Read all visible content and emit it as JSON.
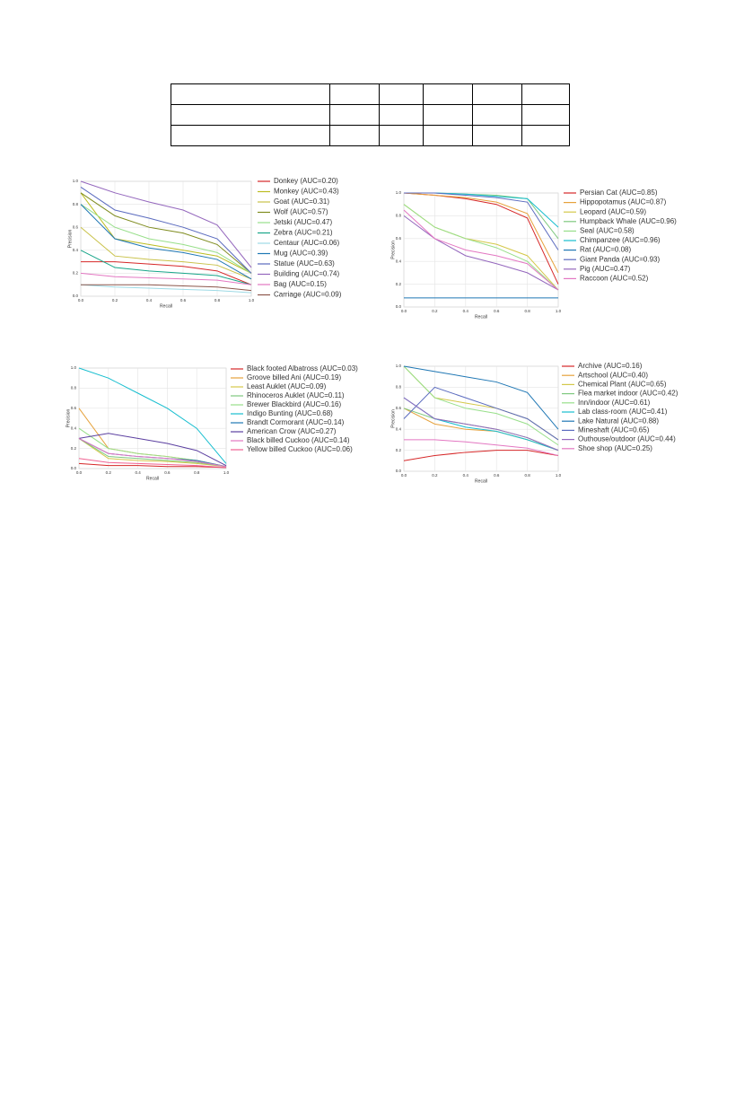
{
  "chart_data": [
    {
      "type": "line",
      "xlabel": "Recall",
      "ylabel": "Precision",
      "xlim": [
        0,
        1
      ],
      "ylim": [
        0,
        1
      ],
      "grid": true,
      "xticks": [
        {
          "value": 0,
          "label": "0.0"
        },
        {
          "value": 0.2,
          "label": "0.2"
        },
        {
          "value": 0.4,
          "label": "0.4"
        },
        {
          "value": 0.6,
          "label": "0.6"
        },
        {
          "value": 0.8,
          "label": "0.8"
        },
        {
          "value": 1,
          "label": "1.0"
        }
      ],
      "yticks": [
        {
          "value": 0,
          "label": "0.0"
        },
        {
          "value": 0.2,
          "label": "0.2"
        },
        {
          "value": 0.4,
          "label": "0.4"
        },
        {
          "value": 0.6,
          "label": "0.6"
        },
        {
          "value": 0.8,
          "label": "0.8"
        },
        {
          "value": 1,
          "label": "1.0"
        }
      ],
      "x": [
        0,
        0.2,
        0.4,
        0.6,
        0.8,
        1
      ],
      "series": [
        {
          "name": "Donkey (AUC=0.20)",
          "color": "#d62728",
          "values": [
            0.3,
            0.3,
            0.28,
            0.26,
            0.22,
            0.1
          ]
        },
        {
          "name": "Monkey (AUC=0.43)",
          "color": "#bcbd22",
          "values": [
            0.9,
            0.5,
            0.45,
            0.4,
            0.35,
            0.2
          ]
        },
        {
          "name": "Goat (AUC=0.31)",
          "color": "#c9c24a",
          "values": [
            0.6,
            0.35,
            0.32,
            0.3,
            0.27,
            0.15
          ]
        },
        {
          "name": "Wolf (AUC=0.57)",
          "color": "#7f8c1f",
          "values": [
            0.9,
            0.7,
            0.6,
            0.55,
            0.45,
            0.2
          ]
        },
        {
          "name": "Jetski (AUC=0.47)",
          "color": "#98df8a",
          "values": [
            0.8,
            0.6,
            0.5,
            0.45,
            0.38,
            0.2
          ]
        },
        {
          "name": "Zebra (AUC=0.21)",
          "color": "#17a589",
          "values": [
            0.4,
            0.25,
            0.22,
            0.2,
            0.18,
            0.1
          ]
        },
        {
          "name": "Centaur (AUC=0.06)",
          "color": "#9edae5",
          "values": [
            0.1,
            0.08,
            0.07,
            0.06,
            0.05,
            0.03
          ]
        },
        {
          "name": "Mug (AUC=0.39)",
          "color": "#1f77b4",
          "values": [
            0.8,
            0.5,
            0.42,
            0.38,
            0.32,
            0.15
          ]
        },
        {
          "name": "Statue (AUC=0.63)",
          "color": "#5b6bbf",
          "values": [
            0.95,
            0.75,
            0.68,
            0.6,
            0.5,
            0.2
          ]
        },
        {
          "name": "Building (AUC=0.74)",
          "color": "#9467bd",
          "values": [
            1,
            0.9,
            0.82,
            0.75,
            0.62,
            0.25
          ]
        },
        {
          "name": "Bag (AUC=0.15)",
          "color": "#e377c2",
          "values": [
            0.2,
            0.17,
            0.16,
            0.15,
            0.14,
            0.1
          ]
        },
        {
          "name": "Carriage (AUC=0.09)",
          "color": "#8c564b",
          "values": [
            0.1,
            0.1,
            0.1,
            0.09,
            0.08,
            0.05
          ]
        }
      ]
    },
    {
      "type": "line",
      "xlabel": "Recall",
      "ylabel": "Precision",
      "xlim": [
        0,
        1
      ],
      "ylim": [
        0,
        1
      ],
      "grid": true,
      "xticks": [
        {
          "value": 0,
          "label": "0.0"
        },
        {
          "value": 0.2,
          "label": "0.2"
        },
        {
          "value": 0.4,
          "label": "0.4"
        },
        {
          "value": 0.6,
          "label": "0.6"
        },
        {
          "value": 0.8,
          "label": "0.8"
        },
        {
          "value": 1,
          "label": "1.0"
        }
      ],
      "yticks": [
        {
          "value": 0,
          "label": "0.0"
        },
        {
          "value": 0.2,
          "label": "0.2"
        },
        {
          "value": 0.4,
          "label": "0.4"
        },
        {
          "value": 0.6,
          "label": "0.6"
        },
        {
          "value": 0.8,
          "label": "0.8"
        },
        {
          "value": 1,
          "label": "1.0"
        }
      ],
      "x": [
        0,
        0.2,
        0.4,
        0.6,
        0.8,
        1
      ],
      "series": [
        {
          "name": "Persian Cat (AUC=0.85)",
          "color": "#d62728",
          "values": [
            1,
            0.98,
            0.95,
            0.9,
            0.78,
            0.2
          ]
        },
        {
          "name": "Hippopotamus (AUC=0.87)",
          "color": "#e6a23c",
          "values": [
            1,
            0.98,
            0.96,
            0.92,
            0.82,
            0.3
          ]
        },
        {
          "name": "Leopard (AUC=0.59)",
          "color": "#d4c84a",
          "values": [
            0.9,
            0.7,
            0.6,
            0.55,
            0.45,
            0.15
          ]
        },
        {
          "name": "Humpback Whale (AUC=0.96)",
          "color": "#7fc97f",
          "values": [
            1,
            1,
            0.99,
            0.98,
            0.95,
            0.6
          ]
        },
        {
          "name": "Seal (AUC=0.58)",
          "color": "#98df8a",
          "values": [
            0.9,
            0.7,
            0.6,
            0.52,
            0.4,
            0.15
          ]
        },
        {
          "name": "Chimpanzee (AUC=0.96)",
          "color": "#17becf",
          "values": [
            1,
            1,
            0.99,
            0.97,
            0.95,
            0.7
          ]
        },
        {
          "name": "Rat (AUC=0.08)",
          "color": "#1f77b4",
          "values": [
            0.08,
            0.08,
            0.08,
            0.08,
            0.08,
            0.08
          ]
        },
        {
          "name": "Giant Panda (AUC=0.93)",
          "color": "#5b6bbf",
          "values": [
            1,
            1,
            0.98,
            0.96,
            0.92,
            0.5
          ]
        },
        {
          "name": "Pig (AUC=0.47)",
          "color": "#9467bd",
          "values": [
            0.8,
            0.6,
            0.45,
            0.38,
            0.3,
            0.15
          ]
        },
        {
          "name": "Raccoon (AUC=0.52)",
          "color": "#e377c2",
          "values": [
            0.85,
            0.6,
            0.5,
            0.45,
            0.38,
            0.15
          ]
        }
      ]
    },
    {
      "type": "line",
      "xlabel": "Recall",
      "ylabel": "Precision",
      "xlim": [
        0,
        1
      ],
      "ylim": [
        0,
        1
      ],
      "grid": true,
      "xticks": [
        {
          "value": 0,
          "label": "0.0"
        },
        {
          "value": 0.2,
          "label": "0.2"
        },
        {
          "value": 0.4,
          "label": "0.4"
        },
        {
          "value": 0.6,
          "label": "0.6"
        },
        {
          "value": 0.8,
          "label": "0.8"
        },
        {
          "value": 1,
          "label": "1.0"
        }
      ],
      "yticks": [
        {
          "value": 0,
          "label": "0.0"
        },
        {
          "value": 0.2,
          "label": "0.2"
        },
        {
          "value": 0.4,
          "label": "0.4"
        },
        {
          "value": 0.6,
          "label": "0.6"
        },
        {
          "value": 0.8,
          "label": "0.8"
        },
        {
          "value": 1,
          "label": "1.0"
        }
      ],
      "x": [
        0,
        0.2,
        0.4,
        0.6,
        0.8,
        1
      ],
      "series": [
        {
          "name": "Black footed Albatross (AUC=0.03)",
          "color": "#d62728",
          "values": [
            0.05,
            0.03,
            0.03,
            0.02,
            0.02,
            0.01
          ]
        },
        {
          "name": "Groove billed Ani (AUC=0.19)",
          "color": "#e6a23c",
          "values": [
            0.6,
            0.2,
            0.15,
            0.12,
            0.08,
            0.02
          ]
        },
        {
          "name": "Least Auklet (AUC=0.09)",
          "color": "#d4c84a",
          "values": [
            0.3,
            0.1,
            0.08,
            0.07,
            0.05,
            0.02
          ]
        },
        {
          "name": "Rhinoceros Auklet (AUC=0.11)",
          "color": "#7fc97f",
          "values": [
            0.3,
            0.12,
            0.1,
            0.08,
            0.06,
            0.02
          ]
        },
        {
          "name": "Brewer Blackbird (AUC=0.16)",
          "color": "#98df8a",
          "values": [
            0.4,
            0.2,
            0.15,
            0.12,
            0.08,
            0.02
          ]
        },
        {
          "name": "Indigo Bunting (AUC=0.68)",
          "color": "#17becf",
          "values": [
            1,
            0.9,
            0.75,
            0.6,
            0.4,
            0.05
          ]
        },
        {
          "name": "Brandt Cormorant (AUC=0.14)",
          "color": "#1f77b4",
          "values": [
            0.3,
            0.15,
            0.12,
            0.1,
            0.08,
            0.02
          ]
        },
        {
          "name": "American Crow (AUC=0.27)",
          "color": "#5b3fa0",
          "values": [
            0.3,
            0.35,
            0.3,
            0.25,
            0.18,
            0.03
          ]
        },
        {
          "name": "Black billed Cuckoo (AUC=0.14)",
          "color": "#e377c2",
          "values": [
            0.3,
            0.15,
            0.12,
            0.1,
            0.07,
            0.02
          ]
        },
        {
          "name": "Yellow billed Cuckoo (AUC=0.06)",
          "color": "#f06292",
          "values": [
            0.1,
            0.06,
            0.05,
            0.04,
            0.03,
            0.01
          ]
        }
      ]
    },
    {
      "type": "line",
      "xlabel": "Recall",
      "ylabel": "Precision",
      "xlim": [
        0,
        1
      ],
      "ylim": [
        0,
        1
      ],
      "grid": true,
      "xticks": [
        {
          "value": 0,
          "label": "0.0"
        },
        {
          "value": 0.2,
          "label": "0.2"
        },
        {
          "value": 0.4,
          "label": "0.4"
        },
        {
          "value": 0.6,
          "label": "0.6"
        },
        {
          "value": 0.8,
          "label": "0.8"
        },
        {
          "value": 1,
          "label": "1.0"
        }
      ],
      "yticks": [
        {
          "value": 0,
          "label": "0.0"
        },
        {
          "value": 0.2,
          "label": "0.2"
        },
        {
          "value": 0.4,
          "label": "0.4"
        },
        {
          "value": 0.6,
          "label": "0.6"
        },
        {
          "value": 0.8,
          "label": "0.8"
        },
        {
          "value": 1,
          "label": "1.0"
        }
      ],
      "x": [
        0,
        0.2,
        0.4,
        0.6,
        0.8,
        1
      ],
      "series": [
        {
          "name": "Archive (AUC=0.16)",
          "color": "#d62728",
          "values": [
            0.1,
            0.15,
            0.18,
            0.2,
            0.2,
            0.15
          ]
        },
        {
          "name": "Artschool (AUC=0.40)",
          "color": "#e6a23c",
          "values": [
            0.6,
            0.45,
            0.4,
            0.38,
            0.3,
            0.2
          ]
        },
        {
          "name": "Chemical Plant (AUC=0.65)",
          "color": "#d4c84a",
          "values": [
            1,
            0.7,
            0.65,
            0.6,
            0.5,
            0.3
          ]
        },
        {
          "name": "Flea market indoor (AUC=0.42)",
          "color": "#7fc97f",
          "values": [
            0.6,
            0.5,
            0.45,
            0.4,
            0.32,
            0.2
          ]
        },
        {
          "name": "Inn/indoor (AUC=0.61)",
          "color": "#98df8a",
          "values": [
            1,
            0.7,
            0.6,
            0.55,
            0.45,
            0.25
          ]
        },
        {
          "name": "Lab class-room (AUC=0.41)",
          "color": "#17becf",
          "values": [
            0.7,
            0.5,
            0.42,
            0.38,
            0.3,
            0.2
          ]
        },
        {
          "name": "Lake Natural (AUC=0.88)",
          "color": "#1f77b4",
          "values": [
            1,
            0.95,
            0.9,
            0.85,
            0.75,
            0.4
          ]
        },
        {
          "name": "Mineshaft (AUC=0.65)",
          "color": "#5b6bbf",
          "values": [
            0.5,
            0.8,
            0.7,
            0.6,
            0.5,
            0.3
          ]
        },
        {
          "name": "Outhouse/outdoor (AUC=0.44)",
          "color": "#9467bd",
          "values": [
            0.7,
            0.5,
            0.45,
            0.4,
            0.32,
            0.2
          ]
        },
        {
          "name": "Shoe shop (AUC=0.25)",
          "color": "#e377c2",
          "values": [
            0.3,
            0.3,
            0.28,
            0.25,
            0.22,
            0.15
          ]
        }
      ]
    }
  ]
}
